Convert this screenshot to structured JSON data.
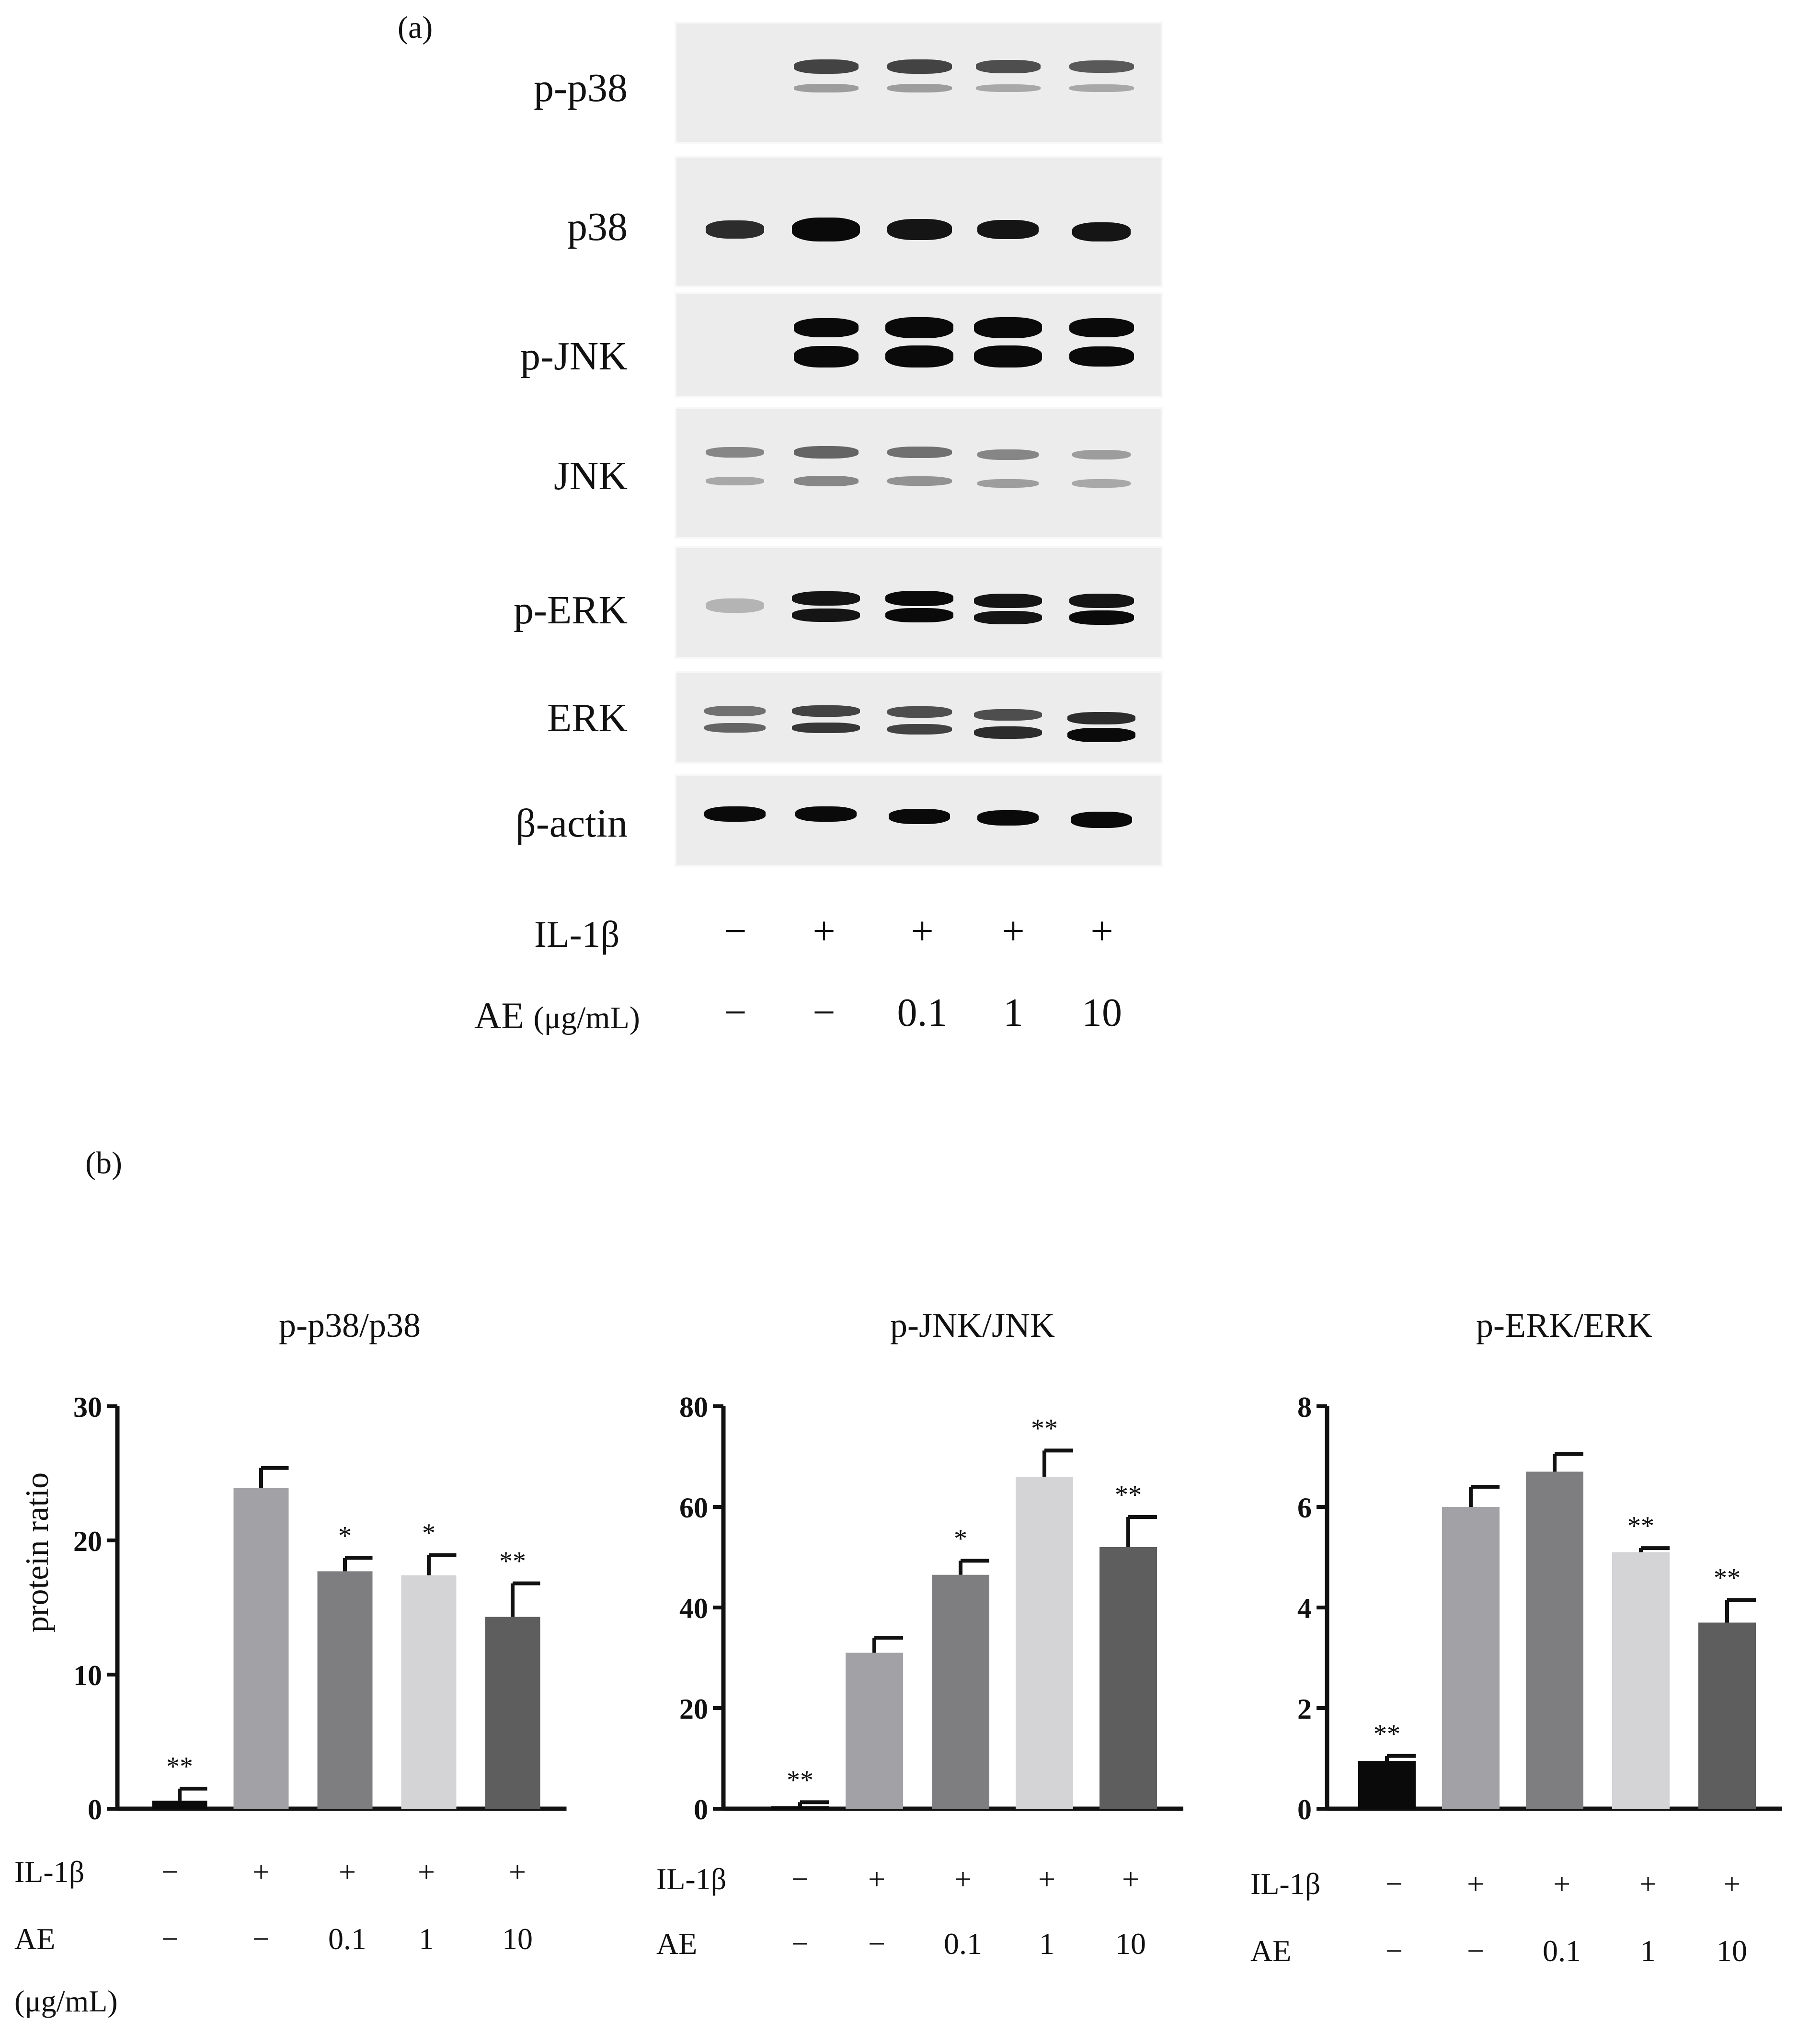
{
  "panel_a": {
    "label": "(a)",
    "blots": [
      "p-p38",
      "p38",
      "p-JNK",
      "JNK",
      "p-ERK",
      "ERK",
      "β-actin"
    ],
    "conditions": {
      "il1b_label": "IL-1β",
      "il1b_values": [
        "−",
        "+",
        "+",
        "+",
        "+"
      ],
      "ae_label": "AE",
      "ae_unit": "(μg/mL)",
      "ae_values": [
        "−",
        "−",
        "0.1",
        "1",
        "10"
      ]
    }
  },
  "panel_b": {
    "label": "(b)",
    "ylabel": "protein ratio",
    "il1b_label": "IL-1β",
    "ae_label": "AE",
    "ae_unit": "(μg/mL)",
    "il1b_values": [
      "−",
      "+",
      "+",
      "+",
      "+"
    ],
    "ae_values": [
      "−",
      "−",
      "0.1",
      "1",
      "10"
    ]
  },
  "colors": {
    "bars": [
      "#0a0a0a",
      "#a2a2a6",
      "#7e7e80",
      "#d4d4d6",
      "#5e5e5e"
    ],
    "axis": "#111111"
  },
  "chart_data": [
    {
      "type": "bar",
      "title": "p-p38/p38",
      "ylabel": "protein ratio",
      "ylim": [
        0,
        30
      ],
      "yticks": [
        0,
        10,
        20,
        30
      ],
      "values": [
        0.6,
        23.9,
        17.7,
        17.4,
        14.3
      ],
      "errors": [
        0.9,
        1.5,
        1.0,
        1.5,
        2.5
      ],
      "significance": [
        "**",
        "",
        "*",
        "*",
        "**"
      ]
    },
    {
      "type": "bar",
      "title": "p-JNK/JNK",
      "ylabel": "",
      "ylim": [
        0,
        80
      ],
      "yticks": [
        0,
        20,
        40,
        60,
        80
      ],
      "values": [
        0.5,
        31.0,
        46.5,
        66.0,
        52.0
      ],
      "errors": [
        0.8,
        3.0,
        2.8,
        5.2,
        6.0
      ],
      "significance": [
        "**",
        "",
        "*",
        "**",
        "**"
      ]
    },
    {
      "type": "bar",
      "title": "p-ERK/ERK",
      "ylabel": "",
      "ylim": [
        0,
        8
      ],
      "yticks": [
        0,
        2,
        4,
        6,
        8
      ],
      "values": [
        0.95,
        6.0,
        6.7,
        5.1,
        3.7
      ],
      "errors": [
        0.1,
        0.4,
        0.35,
        0.08,
        0.45
      ],
      "significance": [
        "**",
        "",
        "",
        "**",
        "**"
      ]
    }
  ]
}
